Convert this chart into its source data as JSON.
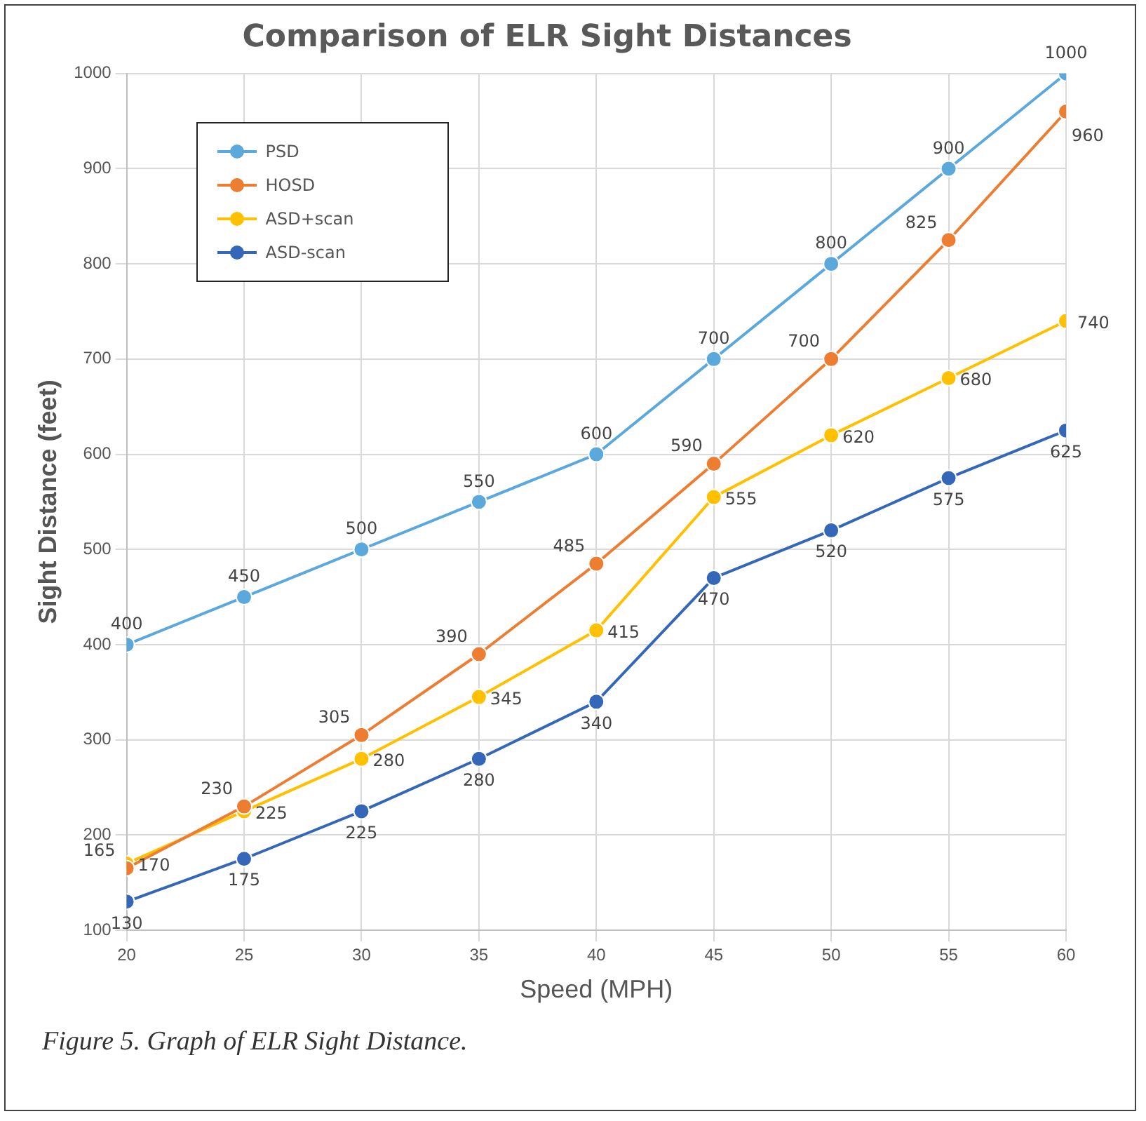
{
  "chart_data": {
    "type": "line",
    "title": "Comparison of ELR Sight Distances",
    "xlabel": "Speed (MPH)",
    "ylabel": "Sight Distance (feet)",
    "x": [
      20,
      25,
      30,
      35,
      40,
      45,
      50,
      55,
      60
    ],
    "series": [
      {
        "name": "PSD",
        "color": "#5ba9dc",
        "values": [
          400,
          450,
          500,
          550,
          600,
          700,
          800,
          900,
          1000
        ]
      },
      {
        "name": "HOSD",
        "color": "#ed7d31",
        "values": [
          165,
          230,
          305,
          390,
          485,
          590,
          700,
          825,
          960
        ]
      },
      {
        "name": "ASD+scan",
        "color": "#ffc000",
        "values": [
          170,
          225,
          280,
          345,
          415,
          555,
          620,
          680,
          740
        ]
      },
      {
        "name": "ASD-scan",
        "color": "#3467b8",
        "values": [
          130,
          175,
          225,
          280,
          340,
          470,
          520,
          575,
          625
        ]
      }
    ],
    "xlim": [
      20,
      60
    ],
    "xticks": [
      20,
      25,
      30,
      35,
      40,
      45,
      50,
      55,
      60
    ],
    "ylim": [
      100,
      1000
    ],
    "yticks": [
      100,
      200,
      300,
      400,
      500,
      600,
      700,
      800,
      900,
      1000
    ],
    "grid": true,
    "legend": "top left",
    "marker": "circle",
    "line_style": "solid",
    "data_labels": true,
    "annotations": [
      "Figure 5. Graph of ELR Sight Distance."
    ]
  }
}
